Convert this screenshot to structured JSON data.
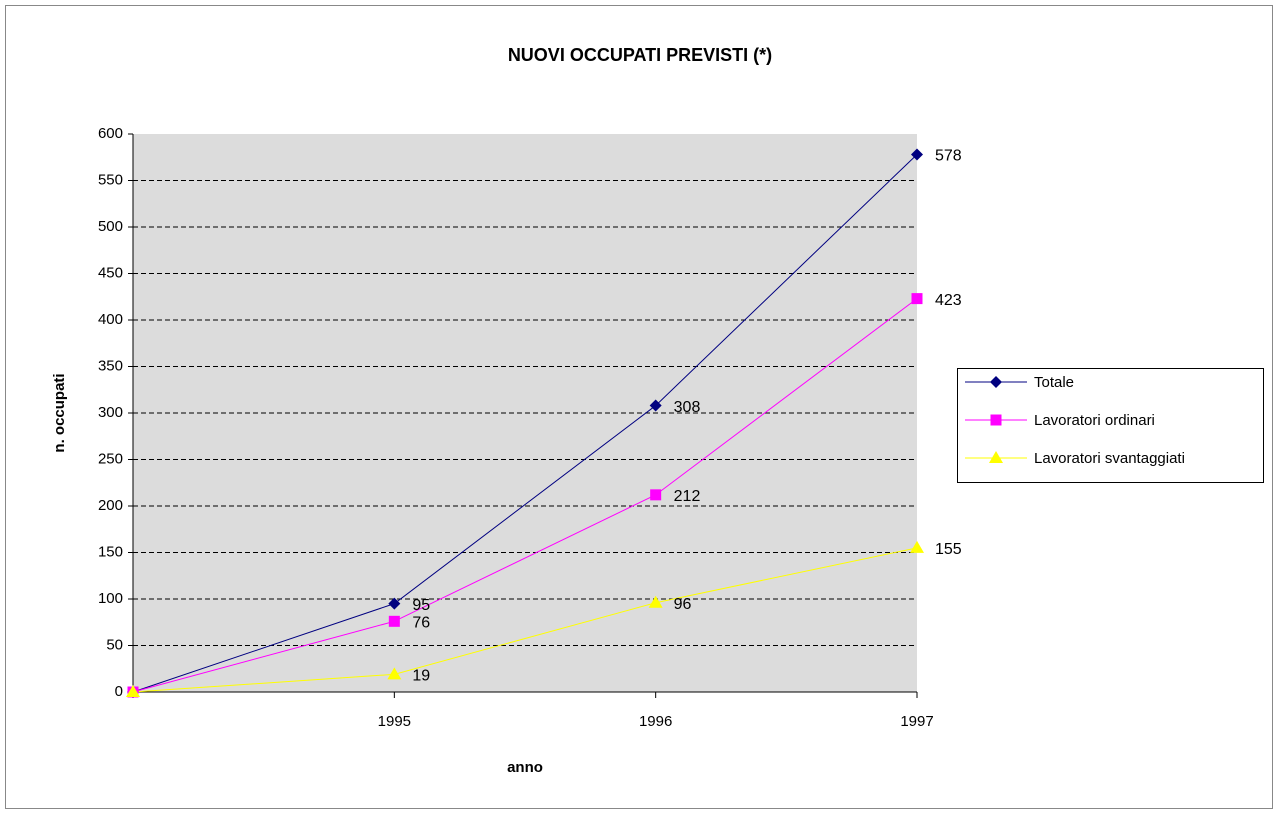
{
  "chart_data": {
    "type": "line",
    "title": "NUOVI OCCUPATI PREVISTI (*)",
    "x_label": "anno",
    "y_label": "n. occupati",
    "categories": [
      null,
      "1995",
      "1996",
      "1997"
    ],
    "series": [
      {
        "name": "Totale",
        "color": "#000080",
        "marker": "diamond",
        "values": [
          0,
          95,
          308,
          578
        ],
        "value_labels": [
          null,
          "95",
          "308",
          "578"
        ]
      },
      {
        "name": "Lavoratori ordinari",
        "color": "#ff00ff",
        "marker": "square",
        "values": [
          0,
          76,
          212,
          423
        ],
        "value_labels": [
          null,
          "76",
          "212",
          "423"
        ]
      },
      {
        "name": "Lavoratori svantaggiati",
        "color": "#ffff00",
        "marker": "triangle",
        "values": [
          0,
          19,
          96,
          155
        ],
        "value_labels": [
          null,
          "19",
          "96",
          "155"
        ]
      }
    ],
    "ylim": [
      0,
      600
    ],
    "yticks": [
      0,
      50,
      100,
      150,
      200,
      250,
      300,
      350,
      400,
      450,
      500,
      550,
      600
    ],
    "grid": true,
    "legend": "right"
  }
}
